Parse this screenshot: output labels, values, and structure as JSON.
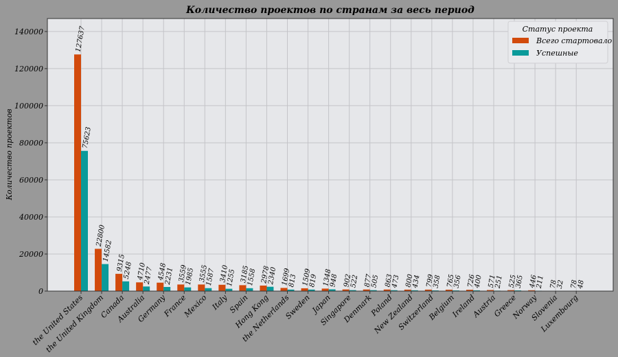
{
  "chart_data": {
    "type": "bar",
    "title": "Количество проектов по странам за весь период",
    "xlabel": "",
    "ylabel": "Количество проектов",
    "ylim": [
      0,
      147000
    ],
    "yticks": [
      0,
      20000,
      40000,
      60000,
      80000,
      100000,
      120000,
      140000
    ],
    "grid": true,
    "legend": {
      "title": "Статус проекта",
      "placement": "top-right"
    },
    "categories": [
      "the United States",
      "the United Kingdom",
      "Canada",
      "Australia",
      "Germany",
      "France",
      "Mexico",
      "Italy",
      "Spain",
      "Hong Kong",
      "the Netherlands",
      "Sweden",
      "Japan",
      "Singapore",
      "Denmark",
      "Poland",
      "New Zealand",
      "Switzerland",
      "Belgium",
      "Ireland",
      "Austria",
      "Greece",
      "Norway",
      "Slovenia",
      "Luxembourg"
    ],
    "series": [
      {
        "name": "Всего стартовало",
        "color": "#d24a0c",
        "values": [
          127637,
          22800,
          9315,
          4710,
          4548,
          3559,
          3555,
          3410,
          3185,
          2978,
          1699,
          1509,
          1348,
          902,
          877,
          863,
          800,
          799,
          765,
          726,
          571,
          525,
          446,
          78,
          78
        ]
      },
      {
        "name": "Успешные",
        "color": "#0a9a9a",
        "values": [
          75623,
          14582,
          5248,
          2477,
          2231,
          1985,
          1587,
          1255,
          1558,
          2340,
          813,
          819,
          948,
          522,
          505,
          473,
          434,
          358,
          356,
          400,
          251,
          365,
          211,
          32,
          48
        ]
      }
    ]
  }
}
